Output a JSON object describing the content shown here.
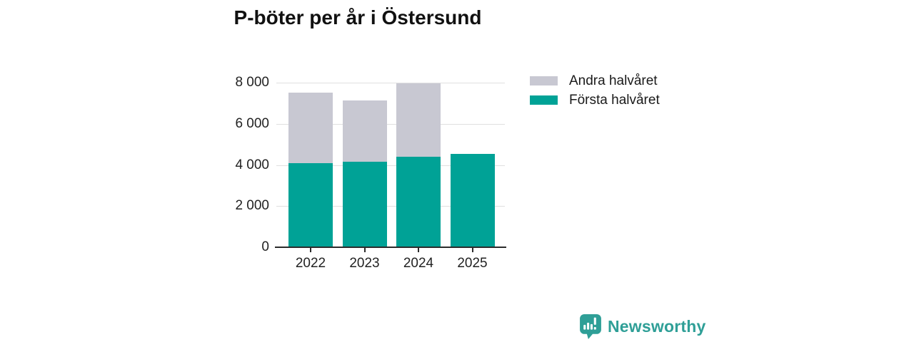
{
  "title": "P-böter per år i Östersund",
  "chart_data": {
    "type": "bar",
    "stacked": true,
    "title": "P-böter per år i Östersund",
    "categories": [
      "2022",
      "2023",
      "2024",
      "2025"
    ],
    "series": [
      {
        "name": "Första halvåret",
        "color": "#00a296",
        "values": [
          4100,
          4150,
          4400,
          4550
        ]
      },
      {
        "name": "Andra halvåret",
        "color": "#c8c8d2",
        "values": [
          3400,
          3000,
          3550,
          0
        ]
      }
    ],
    "xlabel": "",
    "ylabel": "",
    "ylim": [
      0,
      8000
    ],
    "yticks": [
      0,
      2000,
      4000,
      6000,
      8000
    ],
    "ytick_labels": [
      "0",
      "2 000",
      "4 000",
      "6 000",
      "8 000"
    ],
    "grid": "horizontal",
    "legend_position": "right"
  },
  "legend": {
    "items": [
      {
        "label": "Andra halvåret",
        "color": "#c8c8d2"
      },
      {
        "label": "Första halvåret",
        "color": "#00a296"
      }
    ]
  },
  "branding": {
    "logo_text": "Newsworthy",
    "logo_icon": "newsworthy-speech-bubble-bar-chart-icon",
    "color": "#2f9f97"
  }
}
